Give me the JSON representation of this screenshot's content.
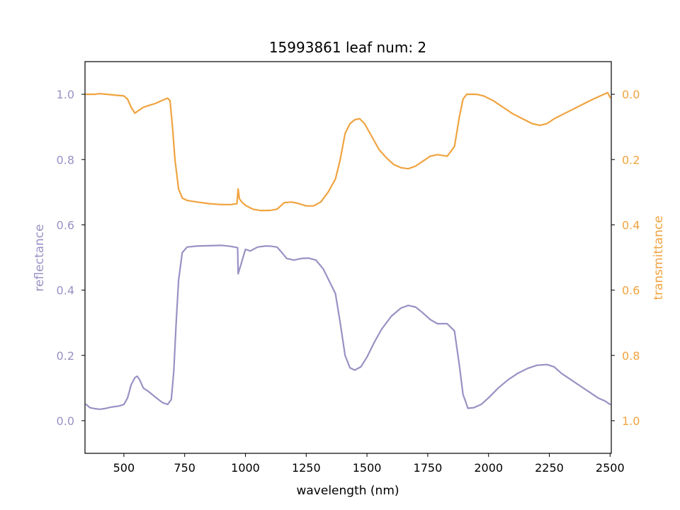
{
  "chart_data": {
    "type": "line",
    "title": "15993861 leaf num: 2",
    "xlabel": "wavelength (nm)",
    "ylabel_left": "reflectance",
    "ylabel_right": "transmittance",
    "xlim": [
      340,
      2505
    ],
    "ylim_left": [
      -0.1,
      1.1
    ],
    "ylim_right": [
      1.1,
      -0.1
    ],
    "x_ticks": [
      500,
      750,
      1000,
      1250,
      1500,
      1750,
      2000,
      2250,
      2500
    ],
    "y_ticks_left": [
      0.0,
      0.2,
      0.4,
      0.6,
      0.8,
      1.0
    ],
    "y_ticks_right": [
      0.0,
      0.2,
      0.4,
      0.6,
      0.8,
      1.0
    ],
    "grid": false,
    "colors": {
      "reflectance": "#9892c4",
      "transmittance": "#f0a33f",
      "axes": "#000000"
    },
    "series": [
      {
        "axis": "left",
        "color": "#9892c4",
        "points": [
          [
            345,
            0.05
          ],
          [
            360,
            0.04
          ],
          [
            380,
            0.037
          ],
          [
            400,
            0.035
          ],
          [
            420,
            0.037
          ],
          [
            450,
            0.042
          ],
          [
            480,
            0.045
          ],
          [
            500,
            0.05
          ],
          [
            515,
            0.07
          ],
          [
            530,
            0.11
          ],
          [
            545,
            0.132
          ],
          [
            555,
            0.136
          ],
          [
            565,
            0.125
          ],
          [
            580,
            0.1
          ],
          [
            600,
            0.09
          ],
          [
            620,
            0.078
          ],
          [
            640,
            0.066
          ],
          [
            660,
            0.055
          ],
          [
            680,
            0.05
          ],
          [
            695,
            0.065
          ],
          [
            705,
            0.15
          ],
          [
            715,
            0.3
          ],
          [
            725,
            0.43
          ],
          [
            740,
            0.515
          ],
          [
            760,
            0.532
          ],
          [
            800,
            0.535
          ],
          [
            850,
            0.536
          ],
          [
            900,
            0.537
          ],
          [
            940,
            0.534
          ],
          [
            968,
            0.53
          ],
          [
            970,
            0.45
          ],
          [
            978,
            0.47
          ],
          [
            990,
            0.5
          ],
          [
            1000,
            0.525
          ],
          [
            1020,
            0.52
          ],
          [
            1050,
            0.532
          ],
          [
            1080,
            0.535
          ],
          [
            1100,
            0.535
          ],
          [
            1130,
            0.532
          ],
          [
            1150,
            0.515
          ],
          [
            1170,
            0.497
          ],
          [
            1200,
            0.492
          ],
          [
            1230,
            0.497
          ],
          [
            1260,
            0.498
          ],
          [
            1290,
            0.492
          ],
          [
            1320,
            0.465
          ],
          [
            1350,
            0.42
          ],
          [
            1370,
            0.39
          ],
          [
            1390,
            0.3
          ],
          [
            1410,
            0.2
          ],
          [
            1430,
            0.162
          ],
          [
            1450,
            0.155
          ],
          [
            1475,
            0.165
          ],
          [
            1500,
            0.195
          ],
          [
            1530,
            0.24
          ],
          [
            1560,
            0.28
          ],
          [
            1600,
            0.32
          ],
          [
            1640,
            0.345
          ],
          [
            1670,
            0.353
          ],
          [
            1700,
            0.348
          ],
          [
            1730,
            0.33
          ],
          [
            1760,
            0.31
          ],
          [
            1790,
            0.297
          ],
          [
            1830,
            0.297
          ],
          [
            1860,
            0.275
          ],
          [
            1880,
            0.17
          ],
          [
            1895,
            0.08
          ],
          [
            1905,
            0.06
          ],
          [
            1915,
            0.038
          ],
          [
            1940,
            0.04
          ],
          [
            1970,
            0.05
          ],
          [
            2000,
            0.07
          ],
          [
            2040,
            0.1
          ],
          [
            2080,
            0.125
          ],
          [
            2120,
            0.145
          ],
          [
            2160,
            0.16
          ],
          [
            2200,
            0.17
          ],
          [
            2240,
            0.172
          ],
          [
            2270,
            0.165
          ],
          [
            2300,
            0.145
          ],
          [
            2340,
            0.125
          ],
          [
            2380,
            0.105
          ],
          [
            2420,
            0.085
          ],
          [
            2450,
            0.07
          ],
          [
            2480,
            0.06
          ],
          [
            2500,
            0.05
          ]
        ]
      },
      {
        "axis": "right",
        "color": "#f0a33f",
        "points": [
          [
            345,
            0.0
          ],
          [
            380,
            0.0
          ],
          [
            400,
            -0.002
          ],
          [
            430,
            0.0
          ],
          [
            470,
            0.003
          ],
          [
            500,
            0.005
          ],
          [
            515,
            0.015
          ],
          [
            530,
            0.04
          ],
          [
            545,
            0.058
          ],
          [
            560,
            0.05
          ],
          [
            580,
            0.04
          ],
          [
            600,
            0.035
          ],
          [
            630,
            0.028
          ],
          [
            660,
            0.018
          ],
          [
            680,
            0.012
          ],
          [
            690,
            0.02
          ],
          [
            700,
            0.1
          ],
          [
            710,
            0.2
          ],
          [
            725,
            0.29
          ],
          [
            740,
            0.318
          ],
          [
            760,
            0.325
          ],
          [
            800,
            0.33
          ],
          [
            850,
            0.335
          ],
          [
            900,
            0.338
          ],
          [
            940,
            0.338
          ],
          [
            965,
            0.335
          ],
          [
            970,
            0.29
          ],
          [
            975,
            0.32
          ],
          [
            985,
            0.33
          ],
          [
            1000,
            0.34
          ],
          [
            1030,
            0.352
          ],
          [
            1060,
            0.356
          ],
          [
            1100,
            0.356
          ],
          [
            1130,
            0.352
          ],
          [
            1160,
            0.332
          ],
          [
            1190,
            0.33
          ],
          [
            1220,
            0.335
          ],
          [
            1250,
            0.342
          ],
          [
            1280,
            0.342
          ],
          [
            1310,
            0.33
          ],
          [
            1340,
            0.3
          ],
          [
            1370,
            0.26
          ],
          [
            1390,
            0.2
          ],
          [
            1410,
            0.12
          ],
          [
            1430,
            0.09
          ],
          [
            1450,
            0.078
          ],
          [
            1470,
            0.075
          ],
          [
            1490,
            0.09
          ],
          [
            1520,
            0.13
          ],
          [
            1550,
            0.17
          ],
          [
            1580,
            0.195
          ],
          [
            1610,
            0.215
          ],
          [
            1640,
            0.225
          ],
          [
            1670,
            0.228
          ],
          [
            1700,
            0.22
          ],
          [
            1730,
            0.205
          ],
          [
            1760,
            0.19
          ],
          [
            1790,
            0.185
          ],
          [
            1830,
            0.19
          ],
          [
            1860,
            0.16
          ],
          [
            1880,
            0.07
          ],
          [
            1895,
            0.015
          ],
          [
            1910,
            0.0
          ],
          [
            1950,
            0.0
          ],
          [
            1980,
            0.005
          ],
          [
            2020,
            0.02
          ],
          [
            2060,
            0.04
          ],
          [
            2100,
            0.06
          ],
          [
            2140,
            0.075
          ],
          [
            2180,
            0.09
          ],
          [
            2210,
            0.095
          ],
          [
            2240,
            0.09
          ],
          [
            2270,
            0.075
          ],
          [
            2310,
            0.06
          ],
          [
            2350,
            0.045
          ],
          [
            2390,
            0.03
          ],
          [
            2430,
            0.015
          ],
          [
            2460,
            0.005
          ],
          [
            2490,
            -0.005
          ],
          [
            2500,
            0.01
          ]
        ]
      }
    ]
  }
}
